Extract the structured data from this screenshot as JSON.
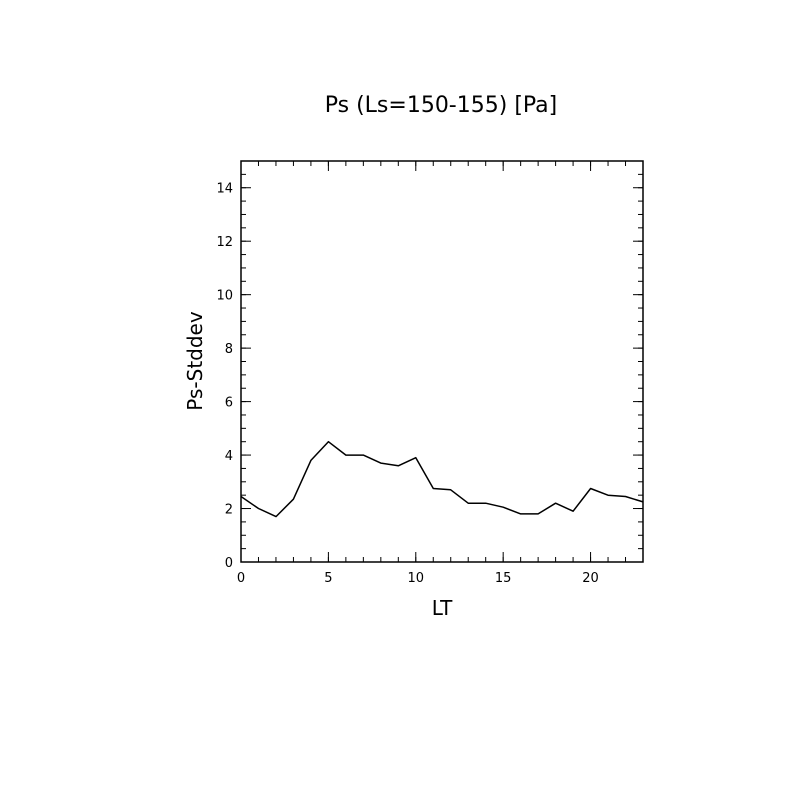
{
  "chart_data": {
    "type": "line",
    "title": "Ps (Ls=150-155) [Pa]",
    "xlabel": "LT",
    "ylabel": "Ps-Stddev",
    "xlim": [
      0,
      23
    ],
    "ylim": [
      0,
      15
    ],
    "x_ticks": [
      0,
      5,
      10,
      15,
      20
    ],
    "y_ticks": [
      0,
      2,
      4,
      6,
      8,
      10,
      12,
      14
    ],
    "x_minor_step": 1,
    "y_minor_step": 0.5,
    "grid": false,
    "series": [
      {
        "color": "#000000",
        "x": [
          0,
          1,
          2,
          3,
          4,
          5,
          6,
          7,
          8,
          9,
          10,
          11,
          12,
          13,
          14,
          15,
          16,
          17,
          18,
          19,
          20,
          21,
          22,
          23
        ],
        "y": [
          2.45,
          2.0,
          1.7,
          2.35,
          3.8,
          4.5,
          4.0,
          4.0,
          3.7,
          3.6,
          3.9,
          2.75,
          2.7,
          2.2,
          2.2,
          2.05,
          1.8,
          1.8,
          2.2,
          1.9,
          2.75,
          2.5,
          2.45,
          2.25
        ]
      }
    ]
  }
}
